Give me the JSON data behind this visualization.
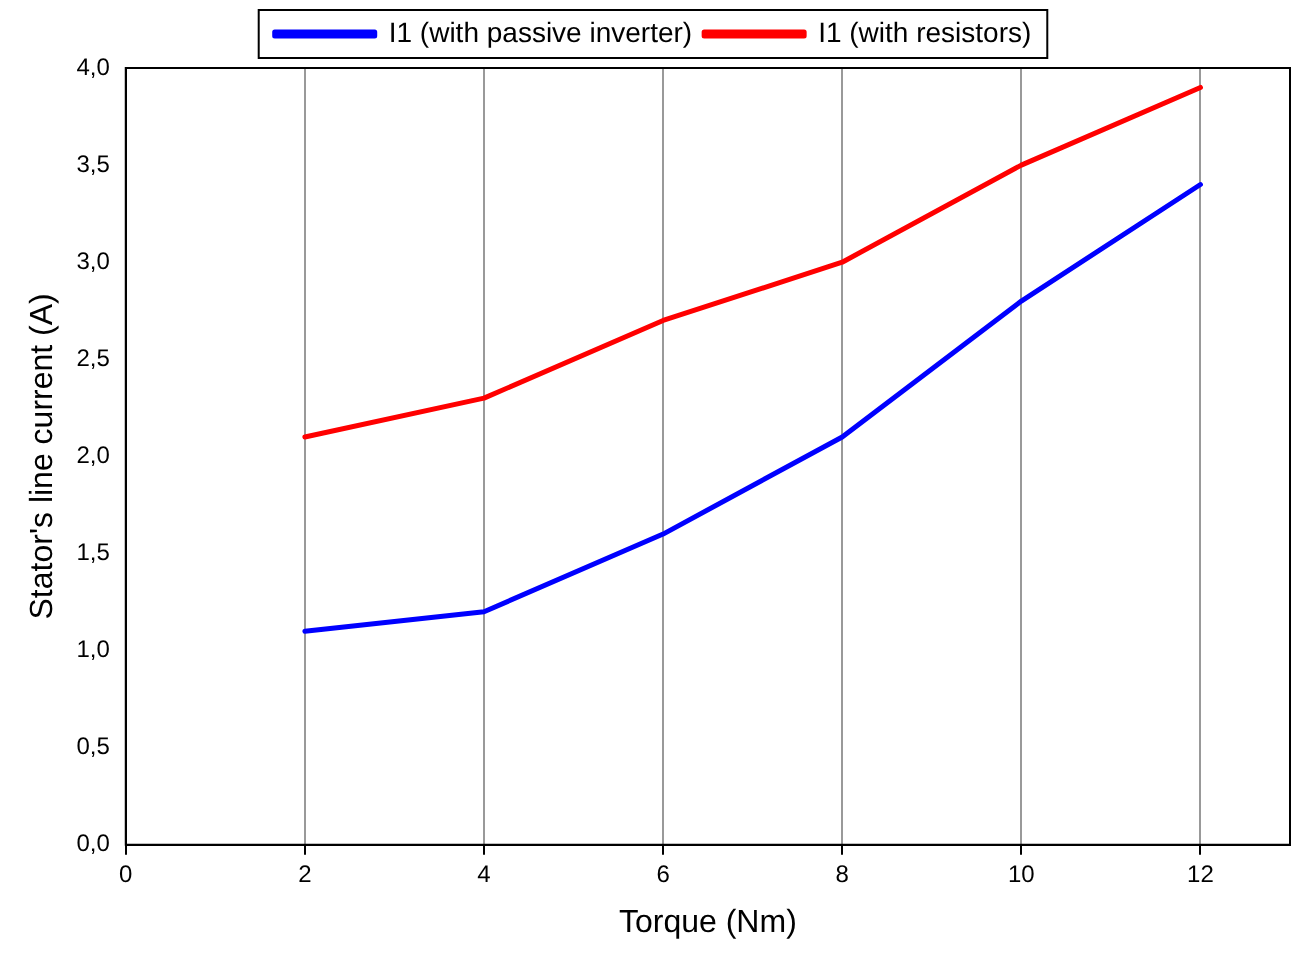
{
  "chart_data": {
    "type": "line",
    "xlabel": "Torque (Nm)",
    "ylabel": "Stator's line current (A)",
    "x": [
      2,
      4,
      6,
      8,
      10,
      12
    ],
    "series": [
      {
        "name": "I1 (with passive inverter)",
        "color": "#0000ff",
        "values": [
          1.1,
          1.2,
          1.6,
          2.1,
          2.8,
          3.4
        ]
      },
      {
        "name": "I1 (with resistors)",
        "color": "#ff0000",
        "values": [
          2.1,
          2.3,
          2.7,
          3.0,
          3.5,
          3.9
        ]
      }
    ],
    "xlim": [
      0,
      13
    ],
    "xticks": [
      0,
      2,
      4,
      6,
      8,
      10,
      12
    ],
    "ylim": [
      0,
      4
    ],
    "yticks": [
      {
        "value": 0,
        "label": "0,0"
      },
      {
        "value": 0.5,
        "label": "0,5"
      },
      {
        "value": 1,
        "label": "1,0"
      },
      {
        "value": 1.5,
        "label": "1,5"
      },
      {
        "value": 2,
        "label": "2,0"
      },
      {
        "value": 2.5,
        "label": "2,5"
      },
      {
        "value": 3,
        "label": "3,0"
      },
      {
        "value": 3.5,
        "label": "3,5"
      },
      {
        "value": 4,
        "label": "4,0"
      }
    ],
    "grid": "x",
    "legend": "top",
    "marker": "none",
    "line_style": "solid"
  }
}
